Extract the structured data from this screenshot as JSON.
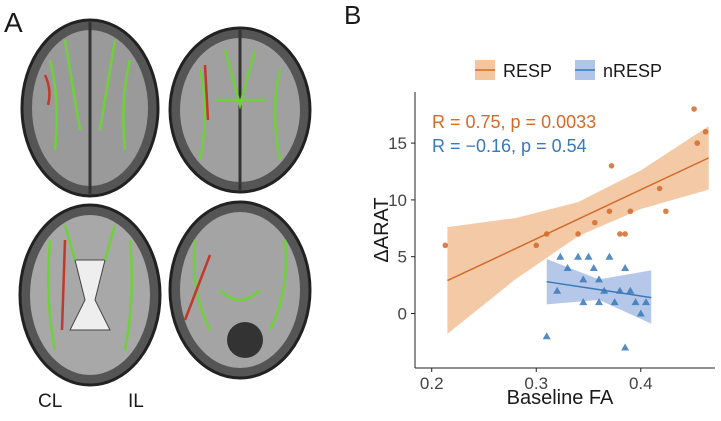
{
  "panel_a": {
    "label": "A",
    "left_label": "CL",
    "right_label": "IL"
  },
  "chart_data": {
    "type": "scatter",
    "panel_label": "B",
    "x_label": "Baseline FA",
    "y_label": "ΔARAT",
    "xlim": [
      0.184,
      0.471
    ],
    "ylim": [
      -4.8,
      19.5
    ],
    "xticks": [
      0.2,
      0.3,
      0.4
    ],
    "yticks": [
      0,
      5,
      10,
      15
    ],
    "grid": false,
    "legend": "top",
    "series": [
      {
        "name": "RESP",
        "color": "#d46a2a",
        "band_color": "#f0b888",
        "marker": "circle",
        "annotation": "R = 0.75, p = 0.0033",
        "x": [
          0.213,
          0.3,
          0.31,
          0.34,
          0.356,
          0.37,
          0.372,
          0.38,
          0.385,
          0.39,
          0.418,
          0.424,
          0.451,
          0.454,
          0.462
        ],
        "values": [
          6,
          6,
          7,
          7,
          8,
          9,
          13,
          7,
          7,
          9,
          11,
          9,
          18,
          15,
          16
        ],
        "fit_x": [
          0.215,
          0.28,
          0.34,
          0.4,
          0.465
        ],
        "fit_values": [
          2.9,
          5.7,
          8.3,
          10.9,
          13.7
        ],
        "band_lower": [
          -1.8,
          3.0,
          6.8,
          9.2,
          10.9
        ],
        "band_upper": [
          7.6,
          8.4,
          9.8,
          12.6,
          16.5
        ]
      },
      {
        "name": "nRESP",
        "color": "#3a78b8",
        "band_color": "#9db6e2",
        "marker": "triangle",
        "annotation": "R = −0.16, p = 0.54",
        "x": [
          0.31,
          0.32,
          0.323,
          0.33,
          0.34,
          0.345,
          0.35,
          0.355,
          0.36,
          0.365,
          0.37,
          0.375,
          0.38,
          0.385,
          0.385,
          0.39,
          0.395,
          0.4,
          0.405,
          0.345,
          0.36
        ],
        "values": [
          -2,
          2,
          5,
          4,
          5,
          3,
          5,
          4,
          3,
          2,
          5,
          1,
          2,
          -3,
          4,
          2,
          1,
          0,
          1,
          1,
          1
        ],
        "fit_x": [
          0.31,
          0.36,
          0.41
        ],
        "fit_values": [
          2.8,
          2.1,
          1.4
        ],
        "band_lower": [
          0.8,
          1.2,
          -0.9
        ],
        "band_upper": [
          4.8,
          3.0,
          3.8
        ]
      }
    ]
  }
}
